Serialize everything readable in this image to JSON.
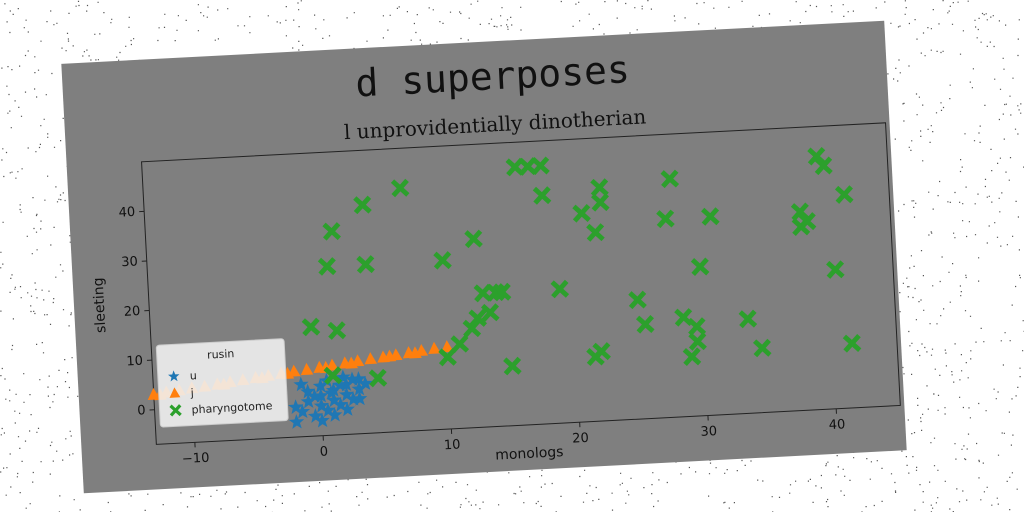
{
  "chart_data": {
    "type": "scatter",
    "suptitle": "d superposes",
    "title": "l unprovidentially dinotherian",
    "xlabel": "monologs",
    "ylabel": "sleeting",
    "xlim": [
      -13,
      45
    ],
    "ylim": [
      -7,
      50
    ],
    "xticks": [
      -10,
      0,
      10,
      20,
      30,
      40
    ],
    "yticks": [
      0,
      10,
      20,
      30,
      40
    ],
    "xtick_labels": [
      "−10",
      "0",
      "10",
      "20",
      "30",
      "40"
    ],
    "ytick_labels": [
      "0",
      "10",
      "20",
      "30",
      "40"
    ],
    "grid": false,
    "legend": {
      "title": "rusin",
      "placement": "lower-left"
    },
    "series": [
      {
        "name": "u",
        "marker": "star",
        "color": "#1f77b4",
        "points": [
          [
            -2,
            -4
          ],
          [
            -1.5,
            -2
          ],
          [
            -1,
            0
          ],
          [
            -0.5,
            -3
          ],
          [
            0,
            -1
          ],
          [
            0,
            1
          ],
          [
            0.5,
            -2
          ],
          [
            1,
            0
          ],
          [
            1,
            2
          ],
          [
            1.5,
            -1
          ],
          [
            2,
            1
          ],
          [
            2,
            3
          ],
          [
            2.5,
            0
          ],
          [
            3,
            2
          ],
          [
            3,
            4
          ],
          [
            -1,
            2
          ],
          [
            0,
            3
          ],
          [
            0.5,
            4
          ],
          [
            1.5,
            3
          ],
          [
            2.5,
            4
          ],
          [
            3.5,
            3
          ],
          [
            -0.5,
            1
          ],
          [
            1,
            -3
          ],
          [
            0,
            -4
          ],
          [
            -2,
            -1
          ],
          [
            2,
            -2
          ],
          [
            3,
            0
          ],
          [
            1.8,
            4.5
          ],
          [
            -1.5,
            3.5
          ],
          [
            0.8,
            1.5
          ]
        ]
      },
      {
        "name": "j",
        "marker": "triangle",
        "color": "#ff7f0e",
        "points": [
          [
            -13,
            3
          ],
          [
            -12,
            3.3
          ],
          [
            -11,
            3.6
          ],
          [
            -10,
            3.9
          ],
          [
            -9,
            4.1
          ],
          [
            -8,
            4.4
          ],
          [
            -7,
            4.7
          ],
          [
            -6,
            5
          ],
          [
            -5,
            5.3
          ],
          [
            -4,
            5.6
          ],
          [
            -3,
            5.9
          ],
          [
            -2,
            6.2
          ],
          [
            -1,
            6.4
          ],
          [
            0,
            6.7
          ],
          [
            1,
            7
          ],
          [
            2,
            7.3
          ],
          [
            3,
            7.6
          ],
          [
            4,
            7.9
          ],
          [
            5,
            8.1
          ],
          [
            6,
            8.4
          ],
          [
            7,
            8.7
          ],
          [
            8,
            9
          ],
          [
            9,
            9.3
          ],
          [
            10,
            9.5
          ],
          [
            -12.5,
            2.9
          ],
          [
            -7.5,
            4.3
          ],
          [
            -2.5,
            5.8
          ],
          [
            2.5,
            7.2
          ],
          [
            7.5,
            8.6
          ],
          [
            -4.5,
            5.2
          ],
          [
            5.5,
            8.2
          ],
          [
            0.5,
            6.6
          ]
        ]
      },
      {
        "name": "pharyngotome",
        "marker": "x",
        "color": "#2ca02c",
        "points": [
          [
            -0.5,
            15
          ],
          [
            1.5,
            14
          ],
          [
            1,
            27
          ],
          [
            1.5,
            34
          ],
          [
            4,
            39
          ],
          [
            4,
            27
          ],
          [
            7,
            42
          ],
          [
            1,
            5
          ],
          [
            4.5,
            4
          ],
          [
            10,
            7.5
          ],
          [
            11,
            10
          ],
          [
            12,
            13
          ],
          [
            12.5,
            15
          ],
          [
            13,
            20
          ],
          [
            13.5,
            16
          ],
          [
            14,
            20
          ],
          [
            14.5,
            20
          ],
          [
            15,
            5
          ],
          [
            10,
            27
          ],
          [
            12.5,
            31
          ],
          [
            16,
            45
          ],
          [
            17,
            45
          ],
          [
            18,
            45
          ],
          [
            18,
            39
          ],
          [
            19,
            20
          ],
          [
            21,
            35
          ],
          [
            21.5,
            6
          ],
          [
            22,
            7
          ],
          [
            22,
            31
          ],
          [
            22.5,
            37
          ],
          [
            22.5,
            40
          ],
          [
            25,
            17
          ],
          [
            25.5,
            12
          ],
          [
            27.5,
            33
          ],
          [
            28,
            41
          ],
          [
            28.5,
            13
          ],
          [
            29,
            5
          ],
          [
            29.5,
            11
          ],
          [
            29.5,
            8
          ],
          [
            30,
            23
          ],
          [
            31,
            33
          ],
          [
            33.5,
            12
          ],
          [
            34.5,
            6
          ],
          [
            38,
            33
          ],
          [
            38,
            30
          ],
          [
            38.5,
            31
          ],
          [
            39.5,
            44
          ],
          [
            40,
            42
          ],
          [
            40.5,
            21
          ],
          [
            41.5,
            36
          ],
          [
            41.5,
            6
          ]
        ]
      }
    ]
  }
}
